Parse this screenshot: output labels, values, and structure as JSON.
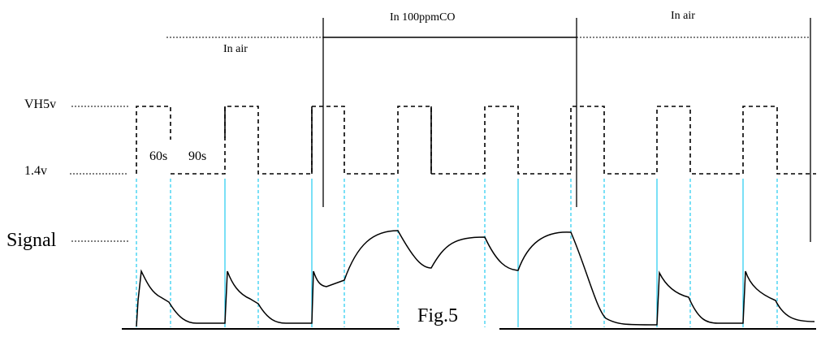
{
  "figure": {
    "caption": "Fig.5",
    "labels": {
      "vh": "VH5v",
      "vl": "1.4v",
      "signal": "Signal",
      "t_high": "60s",
      "t_low": "90s"
    },
    "phases": [
      {
        "name": "In air"
      },
      {
        "name": "In 100ppmCO"
      },
      {
        "name": "In air"
      }
    ]
  }
}
